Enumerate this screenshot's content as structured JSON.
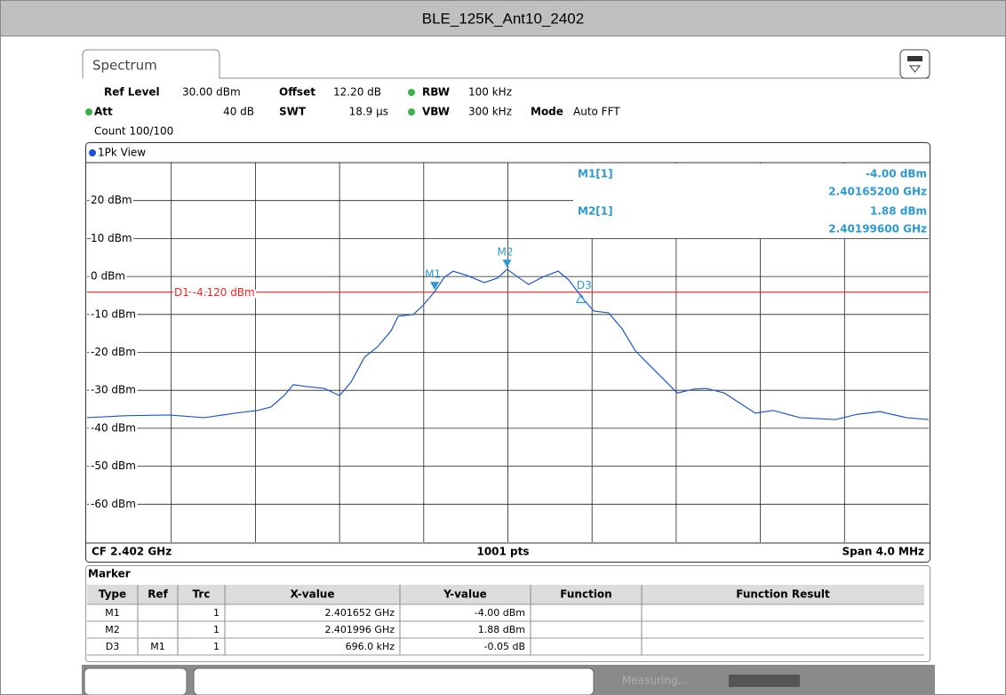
{
  "title": "BLE_125K_Ant10_2402",
  "tab": "Spectrum",
  "settings": [
    {
      "label": "Ref Level",
      "value": "30.00 dBm"
    },
    {
      "label": "Offset",
      "value": "12.20 dB"
    },
    {
      "label": "RBW",
      "value": "100 kHz"
    },
    {
      "label": "Att",
      "value": "40 dB"
    },
    {
      "label": "SWT",
      "value": "18.9 µs"
    },
    {
      "label": "VBW",
      "value": "300 kHz"
    },
    {
      "label": "Mode",
      "value": "Auto FFT"
    }
  ],
  "count": "Count 100/100",
  "chart_data": {
    "type": "line",
    "view": "1Pk View",
    "xlim": [
      2.4,
      2.404
    ],
    "ylim": [
      -70,
      30
    ],
    "yticks": [
      {
        "value": 20,
        "label": "20 dBm"
      },
      {
        "value": 10,
        "label": "10 dBm"
      },
      {
        "value": 0,
        "label": "0 dBm"
      },
      {
        "value": -10,
        "label": "-10 dBm"
      },
      {
        "value": -20,
        "label": "-20 dBm"
      },
      {
        "value": -30,
        "label": "-30 dBm"
      },
      {
        "value": -40,
        "label": "-40 dBm"
      },
      {
        "value": -50,
        "label": "-50 dBm"
      },
      {
        "value": -60,
        "label": "-60 dBm"
      }
    ],
    "grid": true,
    "x": [
      2.4,
      2.400177,
      2.400389,
      2.400558,
      2.400705,
      2.400811,
      2.400874,
      2.400938,
      2.40098,
      2.401043,
      2.401128,
      2.4012,
      2.401255,
      2.401318,
      2.401381,
      2.401445,
      2.401478,
      2.40155,
      2.401592,
      2.401652,
      2.401698,
      2.40174,
      2.401804,
      2.401888,
      2.401951,
      2.401996,
      2.402036,
      2.402099,
      2.402163,
      2.402239,
      2.402289,
      2.402353,
      2.402408,
      2.402479,
      2.402543,
      2.402606,
      2.40267,
      2.402733,
      2.402805,
      2.402881,
      2.402944,
      2.403029,
      2.403092,
      2.403176,
      2.403261,
      2.403388,
      2.403557,
      2.403662,
      2.403768,
      2.403894,
      2.404
    ],
    "series": [
      {
        "color": "#1a55d8",
        "values": [
          -37.2,
          -36.7,
          -36.5,
          -37.2,
          -36,
          -35.3,
          -34.4,
          -31.3,
          -28.5,
          -29,
          -29.5,
          -31.4,
          -27.8,
          -21.3,
          -18.5,
          -14.3,
          -10.5,
          -10,
          -7.9,
          -4,
          -0.2,
          1.4,
          0.3,
          -1.6,
          -0.4,
          1.88,
          0.3,
          -2.1,
          -0.2,
          1.4,
          -0.9,
          -5.6,
          -9.1,
          -9.6,
          -13.8,
          -19.6,
          -23.2,
          -26.7,
          -30.7,
          -29.7,
          -29.5,
          -30.7,
          -33,
          -36,
          -35.3,
          -37.2,
          -37.7,
          -36.3,
          -35.6,
          -37.2,
          -37.7
        ]
      }
    ],
    "display_line": {
      "label": "D1 -4.120 dBm",
      "value": -4.12,
      "color": "#ff2020"
    },
    "markers": [
      {
        "label": "M1",
        "x": 2.401652,
        "y": -4.0,
        "kind": "normal"
      },
      {
        "label": "M2",
        "x": 2.401996,
        "y": 1.88,
        "kind": "normal"
      },
      {
        "label": "D3",
        "x": 2.402348,
        "y": -4.05,
        "kind": "delta"
      }
    ],
    "marker_color": "#2a9ad6",
    "readout": [
      {
        "name": "M1[1]",
        "level": "-4.00 dBm",
        "frequency": "2.40165200 GHz"
      },
      {
        "name": "M2[1]",
        "level": "1.88 dBm",
        "frequency": "2.40199600 GHz"
      }
    ],
    "footer": {
      "left": "CF 2.402 GHz",
      "center": "1001 pts",
      "right": "Span 4.0 MHz"
    }
  },
  "marker_table": {
    "title": "Marker",
    "header": [
      "Type",
      "Ref",
      "Trc",
      "X-value",
      "Y-value",
      "Function",
      "Function Result"
    ],
    "rows": [
      {
        "type": "M1",
        "trc": "1",
        "x": "2.401652 GHz",
        "y": "-4.00 dBm"
      },
      {
        "type": "M2",
        "trc": "1",
        "x": "2.401996 GHz",
        "y": "1.88 dBm"
      },
      {
        "type": "D3",
        "ref": "M1",
        "trc": "1",
        "x": "696.0 kHz",
        "y": "-0.05 dB"
      }
    ]
  },
  "status": "Measuring..."
}
